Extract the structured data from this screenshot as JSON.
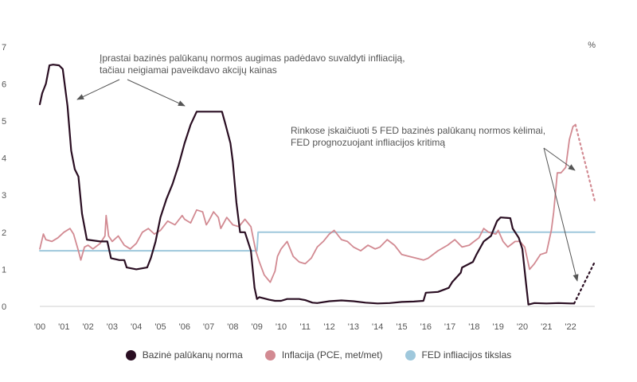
{
  "chart_data": {
    "type": "line",
    "x_tick_labels": [
      "'00",
      "'01",
      "'02",
      "'03",
      "'04",
      "'05",
      "'06",
      "'07",
      "'08",
      "'09",
      "'10",
      "'11",
      "'12",
      "'13",
      "'14",
      "'15",
      "'16",
      "'17",
      "'18",
      "'19",
      "'20",
      "'21",
      "'22"
    ],
    "x_range": [
      2000,
      2023
    ],
    "y_ticks": [
      0,
      1,
      2,
      3,
      4,
      5,
      6,
      7
    ],
    "y_range": [
      0,
      7
    ],
    "y_unit": "%",
    "grid": false,
    "legend_position": "bottom",
    "series": [
      {
        "name": "Bazinė palūkanų norma",
        "color": "#2a0e22",
        "points": [
          [
            2000.0,
            5.45
          ],
          [
            2000.1,
            5.75
          ],
          [
            2000.25,
            6.0
          ],
          [
            2000.4,
            6.5
          ],
          [
            2000.55,
            6.52
          ],
          [
            2000.8,
            6.5
          ],
          [
            2000.95,
            6.4
          ],
          [
            2001.05,
            5.9
          ],
          [
            2001.15,
            5.4
          ],
          [
            2001.3,
            4.2
          ],
          [
            2001.45,
            3.7
          ],
          [
            2001.6,
            3.5
          ],
          [
            2001.75,
            2.5
          ],
          [
            2001.95,
            1.8
          ],
          [
            2002.5,
            1.75
          ],
          [
            2002.8,
            1.75
          ],
          [
            2002.95,
            1.3
          ],
          [
            2003.3,
            1.25
          ],
          [
            2003.5,
            1.25
          ],
          [
            2003.6,
            1.05
          ],
          [
            2004.0,
            1.0
          ],
          [
            2004.45,
            1.05
          ],
          [
            2004.6,
            1.3
          ],
          [
            2004.8,
            1.75
          ],
          [
            2005.0,
            2.4
          ],
          [
            2005.25,
            2.9
          ],
          [
            2005.5,
            3.3
          ],
          [
            2005.75,
            3.8
          ],
          [
            2006.0,
            4.4
          ],
          [
            2006.25,
            4.9
          ],
          [
            2006.5,
            5.25
          ],
          [
            2007.0,
            5.25
          ],
          [
            2007.55,
            5.25
          ],
          [
            2007.7,
            4.9
          ],
          [
            2007.9,
            4.4
          ],
          [
            2008.0,
            3.9
          ],
          [
            2008.15,
            2.8
          ],
          [
            2008.3,
            2.0
          ],
          [
            2008.5,
            2.0
          ],
          [
            2008.75,
            1.5
          ],
          [
            2008.9,
            0.5
          ],
          [
            2009.0,
            0.2
          ],
          [
            2009.1,
            0.25
          ],
          [
            2009.5,
            0.18
          ],
          [
            2009.75,
            0.15
          ],
          [
            2010.0,
            0.15
          ],
          [
            2010.25,
            0.2
          ],
          [
            2010.5,
            0.2
          ],
          [
            2010.75,
            0.2
          ],
          [
            2011.0,
            0.17
          ],
          [
            2011.3,
            0.1
          ],
          [
            2011.5,
            0.09
          ],
          [
            2012.0,
            0.14
          ],
          [
            2012.5,
            0.16
          ],
          [
            2013.0,
            0.14
          ],
          [
            2013.5,
            0.1
          ],
          [
            2014.0,
            0.08
          ],
          [
            2014.5,
            0.09
          ],
          [
            2015.0,
            0.12
          ],
          [
            2015.5,
            0.13
          ],
          [
            2015.9,
            0.15
          ],
          [
            2016.0,
            0.37
          ],
          [
            2016.5,
            0.39
          ],
          [
            2016.95,
            0.5
          ],
          [
            2017.1,
            0.66
          ],
          [
            2017.45,
            0.91
          ],
          [
            2017.5,
            1.05
          ],
          [
            2017.95,
            1.2
          ],
          [
            2018.1,
            1.4
          ],
          [
            2018.4,
            1.75
          ],
          [
            2018.7,
            1.9
          ],
          [
            2018.95,
            2.3
          ],
          [
            2019.1,
            2.4
          ],
          [
            2019.5,
            2.38
          ],
          [
            2019.6,
            2.1
          ],
          [
            2019.85,
            1.85
          ],
          [
            2020.0,
            1.55
          ],
          [
            2020.15,
            0.65
          ],
          [
            2020.25,
            0.05
          ],
          [
            2020.5,
            0.09
          ],
          [
            2021.0,
            0.08
          ],
          [
            2021.5,
            0.09
          ],
          [
            2022.0,
            0.08
          ],
          [
            2022.15,
            0.08
          ]
        ]
      },
      {
        "name": "Inflacija (PCE, met/met)",
        "color": "#d28a92",
        "points": [
          [
            2000.0,
            1.55
          ],
          [
            2000.15,
            1.95
          ],
          [
            2000.25,
            1.8
          ],
          [
            2000.5,
            1.75
          ],
          [
            2000.75,
            1.85
          ],
          [
            2001.0,
            2.0
          ],
          [
            2001.25,
            2.1
          ],
          [
            2001.4,
            1.95
          ],
          [
            2001.6,
            1.5
          ],
          [
            2001.7,
            1.25
          ],
          [
            2001.85,
            1.6
          ],
          [
            2002.0,
            1.65
          ],
          [
            2002.2,
            1.55
          ],
          [
            2002.5,
            1.7
          ],
          [
            2002.7,
            1.9
          ],
          [
            2002.75,
            2.45
          ],
          [
            2002.85,
            1.9
          ],
          [
            2003.0,
            1.75
          ],
          [
            2003.25,
            1.9
          ],
          [
            2003.5,
            1.65
          ],
          [
            2003.75,
            1.55
          ],
          [
            2004.0,
            1.7
          ],
          [
            2004.25,
            2.0
          ],
          [
            2004.5,
            2.1
          ],
          [
            2004.75,
            1.95
          ],
          [
            2005.0,
            2.05
          ],
          [
            2005.3,
            2.3
          ],
          [
            2005.6,
            2.2
          ],
          [
            2005.9,
            2.45
          ],
          [
            2006.0,
            2.35
          ],
          [
            2006.25,
            2.25
          ],
          [
            2006.5,
            2.6
          ],
          [
            2006.75,
            2.55
          ],
          [
            2006.9,
            2.2
          ],
          [
            2007.0,
            2.3
          ],
          [
            2007.2,
            2.55
          ],
          [
            2007.4,
            2.4
          ],
          [
            2007.5,
            2.1
          ],
          [
            2007.75,
            2.4
          ],
          [
            2008.0,
            2.2
          ],
          [
            2008.25,
            2.15
          ],
          [
            2008.5,
            2.35
          ],
          [
            2008.75,
            2.15
          ],
          [
            2008.95,
            1.5
          ],
          [
            2009.1,
            1.2
          ],
          [
            2009.3,
            0.85
          ],
          [
            2009.55,
            0.65
          ],
          [
            2009.75,
            0.95
          ],
          [
            2009.85,
            1.35
          ],
          [
            2010.0,
            1.55
          ],
          [
            2010.25,
            1.75
          ],
          [
            2010.5,
            1.35
          ],
          [
            2010.75,
            1.2
          ],
          [
            2011.0,
            1.15
          ],
          [
            2011.25,
            1.3
          ],
          [
            2011.5,
            1.6
          ],
          [
            2011.75,
            1.75
          ],
          [
            2012.0,
            1.95
          ],
          [
            2012.2,
            2.05
          ],
          [
            2012.5,
            1.8
          ],
          [
            2012.75,
            1.75
          ],
          [
            2013.0,
            1.6
          ],
          [
            2013.3,
            1.5
          ],
          [
            2013.6,
            1.65
          ],
          [
            2013.9,
            1.55
          ],
          [
            2014.1,
            1.6
          ],
          [
            2014.4,
            1.8
          ],
          [
            2014.7,
            1.65
          ],
          [
            2015.0,
            1.4
          ],
          [
            2015.3,
            1.35
          ],
          [
            2015.6,
            1.3
          ],
          [
            2015.9,
            1.25
          ],
          [
            2016.1,
            1.3
          ],
          [
            2016.5,
            1.5
          ],
          [
            2016.9,
            1.65
          ],
          [
            2017.2,
            1.8
          ],
          [
            2017.5,
            1.6
          ],
          [
            2017.8,
            1.65
          ],
          [
            2018.0,
            1.75
          ],
          [
            2018.2,
            1.85
          ],
          [
            2018.4,
            2.1
          ],
          [
            2018.6,
            2.0
          ],
          [
            2018.9,
            1.95
          ],
          [
            2019.0,
            2.05
          ],
          [
            2019.2,
            1.75
          ],
          [
            2019.4,
            1.6
          ],
          [
            2019.7,
            1.75
          ],
          [
            2019.9,
            1.75
          ],
          [
            2020.1,
            1.6
          ],
          [
            2020.3,
            1.0
          ],
          [
            2020.5,
            1.15
          ],
          [
            2020.75,
            1.4
          ],
          [
            2021.0,
            1.45
          ],
          [
            2021.2,
            2.05
          ],
          [
            2021.3,
            2.55
          ],
          [
            2021.45,
            3.6
          ],
          [
            2021.6,
            3.6
          ],
          [
            2021.8,
            3.75
          ],
          [
            2021.95,
            4.5
          ],
          [
            2022.1,
            4.85
          ],
          [
            2022.2,
            4.9
          ]
        ]
      },
      {
        "name": "FED infliacijos tikslas",
        "color": "#9fc8dc",
        "points": [
          [
            2000.0,
            1.5
          ],
          [
            2009.0,
            1.5
          ],
          [
            2009.05,
            2.0
          ],
          [
            2023.0,
            2.0
          ]
        ]
      }
    ],
    "projections": [
      {
        "of": "Inflacija (PCE, met/met)",
        "points": [
          [
            2022.2,
            4.9
          ],
          [
            2023.0,
            2.85
          ]
        ]
      },
      {
        "of": "Bazinė palūkanų norma",
        "points": [
          [
            2022.15,
            0.08
          ],
          [
            2023.0,
            1.2
          ]
        ]
      }
    ],
    "annotations": [
      {
        "lines": [
          "Įprastai bazinės palūkanų normos augimas padėdavo suvaldyti infliaciją,",
          "tačiau neigiamai paveikdavo akcijų kainas"
        ]
      },
      {
        "lines": [
          "Rinkose įskaičiuoti 5 FED bazinės palūkanų normos kėlimai,",
          "FED prognozuojant infliacijos kritimą"
        ]
      }
    ]
  },
  "legend": {
    "policy_rate": "Bazinė palūkanų norma",
    "inflation": "Inflacija (PCE, met/met)",
    "target": "FED infliacijos tikslas"
  }
}
